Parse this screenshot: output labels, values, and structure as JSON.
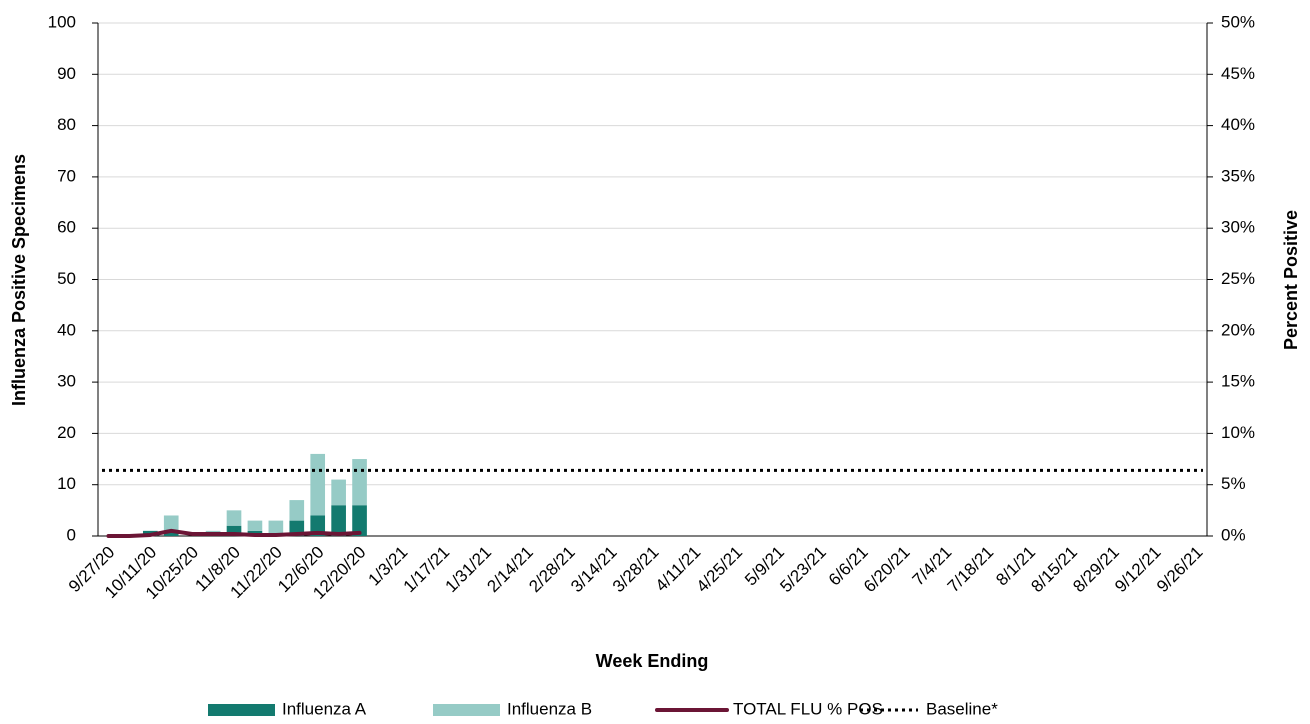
{
  "chart_data": {
    "type": "bar",
    "x_label": "Week Ending",
    "y_label": "Influenza Positive Specimens",
    "y2_label": "Percent Positive",
    "categories": [
      "9/27/20",
      null,
      "10/11/20",
      null,
      "10/25/20",
      null,
      "11/8/20",
      null,
      "11/22/20",
      null,
      "12/6/20",
      null,
      "12/20/20",
      null,
      "1/3/21",
      null,
      "1/17/21",
      null,
      "1/31/21",
      null,
      "2/14/21",
      null,
      "2/28/21",
      null,
      "3/14/21",
      null,
      "3/28/21",
      null,
      "4/11/21",
      null,
      "4/25/21",
      null,
      "5/9/21",
      null,
      "5/23/21",
      null,
      "6/6/21",
      null,
      "6/20/21",
      null,
      "7/4/21",
      null,
      "7/18/21",
      null,
      "8/1/21",
      null,
      "8/15/21",
      null,
      "8/29/21",
      null,
      "9/12/21",
      null,
      "9/26/21"
    ],
    "series": [
      {
        "name": "Influenza A",
        "color": "#137a6f",
        "type": "bar",
        "values": [
          0,
          0,
          1,
          1,
          0,
          0,
          2,
          1,
          0,
          3,
          4,
          6,
          6,
          null,
          null,
          null,
          null,
          null,
          null,
          null,
          null,
          null,
          null,
          null,
          null,
          null,
          null,
          null,
          null,
          null,
          null,
          null,
          null,
          null,
          null,
          null,
          null,
          null,
          null,
          null,
          null,
          null,
          null,
          null,
          null,
          null,
          null,
          null,
          null,
          null,
          null,
          null,
          null
        ]
      },
      {
        "name": "Influenza B",
        "color": "#96cbc6",
        "type": "bar",
        "values": [
          0,
          0,
          0,
          3,
          0,
          1,
          3,
          2,
          3,
          4,
          12,
          5,
          9,
          null,
          null,
          null,
          null,
          null,
          null,
          null,
          null,
          null,
          null,
          null,
          null,
          null,
          null,
          null,
          null,
          null,
          null,
          null,
          null,
          null,
          null,
          null,
          null,
          null,
          null,
          null,
          null,
          null,
          null,
          null,
          null,
          null,
          null,
          null,
          null,
          null,
          null,
          null,
          null
        ]
      },
      {
        "name": "TOTAL FLU % POS",
        "color": "#6b1535",
        "type": "line",
        "axis": "y2",
        "values": [
          0,
          0,
          0.1,
          0.5,
          0.2,
          0.2,
          0.2,
          0.1,
          0.1,
          0.2,
          0.3,
          0.2,
          0.3,
          null,
          null,
          null,
          null,
          null,
          null,
          null,
          null,
          null,
          null,
          null,
          null,
          null,
          null,
          null,
          null,
          null,
          null,
          null,
          null,
          null,
          null,
          null,
          null,
          null,
          null,
          null,
          null,
          null,
          null,
          null,
          null,
          null,
          null,
          null,
          null,
          null,
          null,
          null,
          null
        ]
      }
    ],
    "baseline": {
      "name": "Baseline*",
      "value": 6.4,
      "axis": "y2",
      "color": "#000000"
    },
    "ylim": [
      0,
      100
    ],
    "yticks": [
      0,
      10,
      20,
      30,
      40,
      50,
      60,
      70,
      80,
      90,
      100
    ],
    "y2lim": [
      0,
      50
    ],
    "y2ticks": [
      {
        "value": 0,
        "label": "0%"
      },
      {
        "value": 5,
        "label": "5%"
      },
      {
        "value": 10,
        "label": "10%"
      },
      {
        "value": 15,
        "label": "15%"
      },
      {
        "value": 20,
        "label": "20%"
      },
      {
        "value": 25,
        "label": "25%"
      },
      {
        "value": 30,
        "label": "30%"
      },
      {
        "value": 35,
        "label": "35%"
      },
      {
        "value": 40,
        "label": "40%"
      },
      {
        "value": 45,
        "label": "45%"
      },
      {
        "value": 50,
        "label": "50%"
      }
    ],
    "grid": true,
    "legend": "bottom"
  }
}
